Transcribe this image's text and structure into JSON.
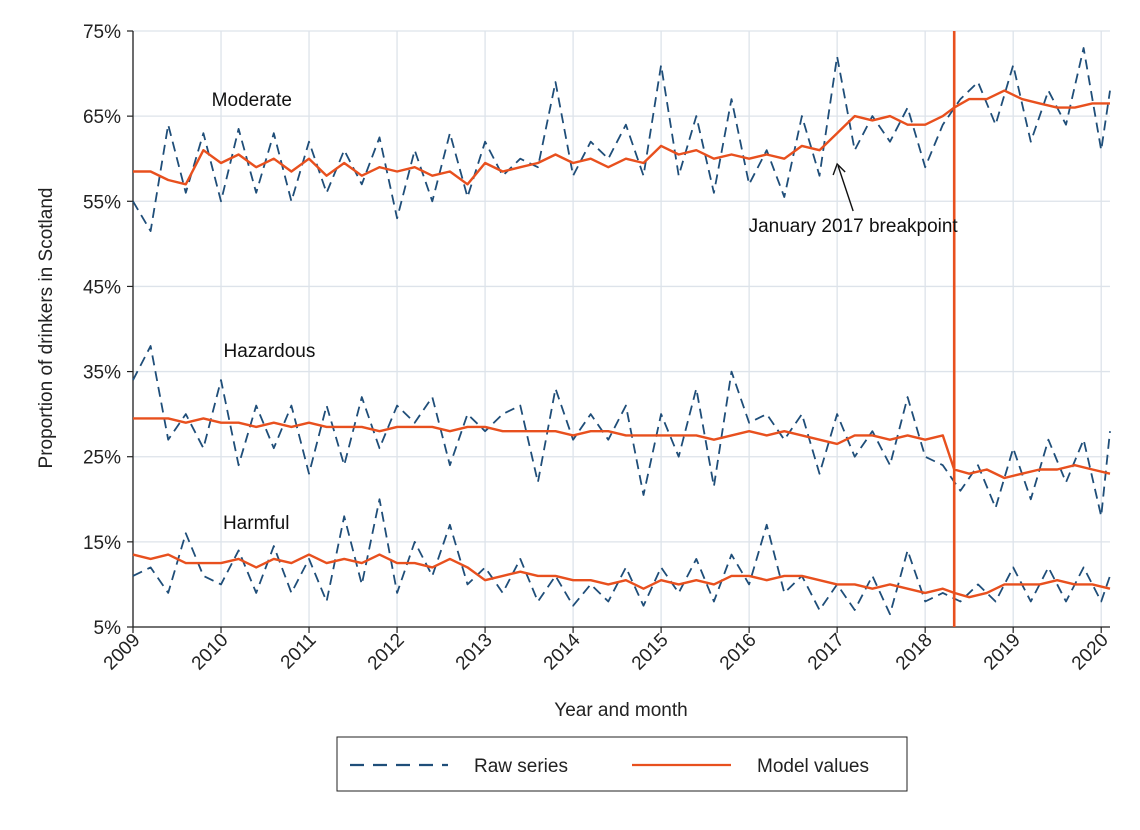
{
  "chart_data": {
    "type": "line",
    "title": "",
    "xlabel": "Year and month",
    "ylabel": "Proportion of drinkers in Scotland",
    "xlim": [
      2009,
      2020.1
    ],
    "ylim": [
      5,
      75
    ],
    "yticks": [
      5,
      15,
      25,
      35,
      45,
      55,
      65,
      75
    ],
    "ytick_labels": [
      "5%",
      "15%",
      "25%",
      "35%",
      "45%",
      "55%",
      "65%",
      "75%"
    ],
    "xticks": [
      2009,
      2010,
      2011,
      2012,
      2013,
      2014,
      2015,
      2016,
      2017,
      2018,
      2019,
      2020
    ],
    "xtick_labels": [
      "2009",
      "2010",
      "2011",
      "2012",
      "2013",
      "2014",
      "2015",
      "2016",
      "2017",
      "2018",
      "2019",
      "2020"
    ],
    "grid": true,
    "breakpoint_line": {
      "x": 2018.33,
      "color": "#e8501e"
    },
    "annotation": {
      "text": "January 2017 breakpoint",
      "x": 2017.0,
      "y": 59.5
    },
    "group_labels": [
      {
        "text": "Moderate",
        "x": 2010.35,
        "y": 66.2
      },
      {
        "text": "Hazardous",
        "x": 2010.55,
        "y": 36.7
      },
      {
        "text": "Harmful",
        "x": 2010.4,
        "y": 16.5
      }
    ],
    "legend": {
      "position": "bottom",
      "entries": [
        {
          "label": "Raw series",
          "style": "dashed",
          "color": "#1f4e79"
        },
        {
          "label": "Model values",
          "style": "solid",
          "color": "#e8501e"
        }
      ]
    },
    "series": [
      {
        "name": "Moderate raw",
        "style": "dashed",
        "color": "#1f4e79",
        "x": [
          2009.0,
          2009.2,
          2009.4,
          2009.6,
          2009.8,
          2010.0,
          2010.2,
          2010.4,
          2010.6,
          2010.8,
          2011.0,
          2011.2,
          2011.4,
          2011.6,
          2011.8,
          2012.0,
          2012.2,
          2012.4,
          2012.6,
          2012.8,
          2013.0,
          2013.2,
          2013.4,
          2013.6,
          2013.8,
          2014.0,
          2014.2,
          2014.4,
          2014.6,
          2014.8,
          2015.0,
          2015.2,
          2015.4,
          2015.6,
          2015.8,
          2016.0,
          2016.2,
          2016.4,
          2016.6,
          2016.8,
          2017.0,
          2017.2,
          2017.4,
          2017.6,
          2017.8,
          2018.0,
          2018.2,
          2018.4,
          2018.6,
          2018.8,
          2019.0,
          2019.2,
          2019.4,
          2019.6,
          2019.8,
          2020.0,
          2020.1
        ],
        "values": [
          55,
          51.5,
          64,
          56,
          63,
          55,
          63.5,
          56,
          63,
          55,
          62,
          56,
          61,
          57,
          62.5,
          53,
          61,
          55,
          63,
          55.5,
          62,
          58,
          60,
          59,
          69,
          58,
          62,
          60,
          64,
          58,
          71,
          58,
          65,
          56,
          67,
          57,
          61,
          55.5,
          65,
          58,
          72,
          61,
          65,
          62,
          66,
          59,
          64,
          67,
          69,
          64,
          71,
          62,
          68,
          64,
          73,
          61,
          68
        ]
      },
      {
        "name": "Moderate model",
        "style": "solid",
        "color": "#e8501e",
        "x": [
          2009.0,
          2009.2,
          2009.4,
          2009.6,
          2009.8,
          2010.0,
          2010.2,
          2010.4,
          2010.6,
          2010.8,
          2011.0,
          2011.2,
          2011.4,
          2011.6,
          2011.8,
          2012.0,
          2012.2,
          2012.4,
          2012.6,
          2012.8,
          2013.0,
          2013.2,
          2013.4,
          2013.6,
          2013.8,
          2014.0,
          2014.2,
          2014.4,
          2014.6,
          2014.8,
          2015.0,
          2015.2,
          2015.4,
          2015.6,
          2015.8,
          2016.0,
          2016.2,
          2016.4,
          2016.6,
          2016.8,
          2017.0,
          2017.2,
          2017.4,
          2017.6,
          2017.8,
          2018.0,
          2018.2,
          2018.33,
          2018.5,
          2018.7,
          2018.9,
          2019.1,
          2019.3,
          2019.5,
          2019.7,
          2019.9,
          2020.1
        ],
        "values": [
          58.5,
          58.5,
          57.5,
          57,
          61,
          59.5,
          60.5,
          59,
          60,
          58.5,
          60,
          58,
          59.5,
          58,
          59,
          58.5,
          59,
          58,
          58.5,
          57,
          59.5,
          58.5,
          59,
          59.5,
          60.5,
          59.5,
          60,
          59,
          60,
          59.5,
          61.5,
          60.5,
          61,
          60,
          60.5,
          60,
          60.5,
          60,
          61.5,
          61,
          63,
          65,
          64.5,
          65,
          64,
          64,
          65,
          66,
          67,
          67,
          68,
          67,
          66.5,
          66,
          66,
          66.5,
          66.5
        ]
      },
      {
        "name": "Hazardous raw",
        "style": "dashed",
        "color": "#1f4e79",
        "x": [
          2009.0,
          2009.2,
          2009.4,
          2009.6,
          2009.8,
          2010.0,
          2010.2,
          2010.4,
          2010.6,
          2010.8,
          2011.0,
          2011.2,
          2011.4,
          2011.6,
          2011.8,
          2012.0,
          2012.2,
          2012.4,
          2012.6,
          2012.8,
          2013.0,
          2013.2,
          2013.4,
          2013.6,
          2013.8,
          2014.0,
          2014.2,
          2014.4,
          2014.6,
          2014.8,
          2015.0,
          2015.2,
          2015.4,
          2015.6,
          2015.8,
          2016.0,
          2016.2,
          2016.4,
          2016.6,
          2016.8,
          2017.0,
          2017.2,
          2017.4,
          2017.6,
          2017.8,
          2018.0,
          2018.2,
          2018.4,
          2018.6,
          2018.8,
          2019.0,
          2019.2,
          2019.4,
          2019.6,
          2019.8,
          2020.0,
          2020.1
        ],
        "values": [
          34,
          38,
          27,
          30,
          26,
          34,
          24,
          31,
          26,
          31,
          23,
          31,
          24,
          32,
          26,
          31,
          29,
          32,
          24,
          30,
          28,
          30,
          31,
          22,
          33,
          27,
          30,
          27,
          31,
          20.5,
          30,
          25,
          33,
          21.5,
          35,
          29,
          30,
          27,
          30,
          23,
          30,
          25,
          28,
          24,
          32,
          25,
          24,
          21,
          24,
          19,
          26,
          20,
          27,
          22,
          27,
          18,
          28
        ]
      },
      {
        "name": "Hazardous model",
        "style": "solid",
        "color": "#e8501e",
        "x": [
          2009.0,
          2009.2,
          2009.4,
          2009.6,
          2009.8,
          2010.0,
          2010.2,
          2010.4,
          2010.6,
          2010.8,
          2011.0,
          2011.2,
          2011.4,
          2011.6,
          2011.8,
          2012.0,
          2012.2,
          2012.4,
          2012.6,
          2012.8,
          2013.0,
          2013.2,
          2013.4,
          2013.6,
          2013.8,
          2014.0,
          2014.2,
          2014.4,
          2014.6,
          2014.8,
          2015.0,
          2015.2,
          2015.4,
          2015.6,
          2015.8,
          2016.0,
          2016.2,
          2016.4,
          2016.6,
          2016.8,
          2017.0,
          2017.2,
          2017.4,
          2017.6,
          2017.8,
          2018.0,
          2018.2,
          2018.33,
          2018.5,
          2018.7,
          2018.9,
          2019.1,
          2019.3,
          2019.5,
          2019.7,
          2019.9,
          2020.1
        ],
        "values": [
          29.5,
          29.5,
          29.5,
          29,
          29.5,
          29,
          29,
          28.5,
          29,
          28.5,
          29,
          28.5,
          28.5,
          28.5,
          28,
          28.5,
          28.5,
          28.5,
          28,
          28.5,
          28.5,
          28,
          28,
          28,
          28,
          27.5,
          28,
          28,
          27.5,
          27.5,
          27.5,
          27.5,
          27.5,
          27,
          27.5,
          28,
          27.5,
          28,
          27.5,
          27,
          26.5,
          27.5,
          27.5,
          27,
          27.5,
          27,
          27.5,
          23.5,
          23,
          23.5,
          22.5,
          23,
          23.5,
          23.5,
          24,
          23.5,
          23
        ]
      },
      {
        "name": "Harmful raw",
        "style": "dashed",
        "color": "#1f4e79",
        "x": [
          2009.0,
          2009.2,
          2009.4,
          2009.6,
          2009.8,
          2010.0,
          2010.2,
          2010.4,
          2010.6,
          2010.8,
          2011.0,
          2011.2,
          2011.4,
          2011.6,
          2011.8,
          2012.0,
          2012.2,
          2012.4,
          2012.6,
          2012.8,
          2013.0,
          2013.2,
          2013.4,
          2013.6,
          2013.8,
          2014.0,
          2014.2,
          2014.4,
          2014.6,
          2014.8,
          2015.0,
          2015.2,
          2015.4,
          2015.6,
          2015.8,
          2016.0,
          2016.2,
          2016.4,
          2016.6,
          2016.8,
          2017.0,
          2017.2,
          2017.4,
          2017.6,
          2017.8,
          2018.0,
          2018.2,
          2018.4,
          2018.6,
          2018.8,
          2019.0,
          2019.2,
          2019.4,
          2019.6,
          2019.8,
          2020.0,
          2020.1
        ],
        "values": [
          11,
          12,
          9,
          16,
          11,
          10,
          14,
          9,
          14.5,
          9,
          13,
          8,
          18,
          10,
          20,
          9,
          15,
          11,
          17,
          10,
          12,
          9,
          13,
          8,
          11,
          7.5,
          10,
          8,
          12,
          7.5,
          12,
          9,
          13,
          8,
          13.5,
          10,
          17,
          9,
          11,
          7,
          10,
          7,
          11,
          6.5,
          14,
          8,
          9,
          8,
          10,
          8,
          12,
          8,
          12,
          8,
          12,
          8,
          11
        ]
      },
      {
        "name": "Harmful model",
        "style": "solid",
        "color": "#e8501e",
        "x": [
          2009.0,
          2009.2,
          2009.4,
          2009.6,
          2009.8,
          2010.0,
          2010.2,
          2010.4,
          2010.6,
          2010.8,
          2011.0,
          2011.2,
          2011.4,
          2011.6,
          2011.8,
          2012.0,
          2012.2,
          2012.4,
          2012.6,
          2012.8,
          2013.0,
          2013.2,
          2013.4,
          2013.6,
          2013.8,
          2014.0,
          2014.2,
          2014.4,
          2014.6,
          2014.8,
          2015.0,
          2015.2,
          2015.4,
          2015.6,
          2015.8,
          2016.0,
          2016.2,
          2016.4,
          2016.6,
          2016.8,
          2017.0,
          2017.2,
          2017.4,
          2017.6,
          2017.8,
          2018.0,
          2018.2,
          2018.33,
          2018.5,
          2018.7,
          2018.9,
          2019.1,
          2019.3,
          2019.5,
          2019.7,
          2019.9,
          2020.1
        ],
        "values": [
          13.5,
          13,
          13.5,
          12.5,
          12.5,
          12.5,
          13,
          12,
          13,
          12.5,
          13.5,
          12.5,
          13,
          12.5,
          13.5,
          12.5,
          12.5,
          12,
          13,
          12,
          10.5,
          11,
          11.5,
          11,
          11,
          10.5,
          10.5,
          10,
          10.5,
          9.5,
          10.5,
          10,
          10.5,
          10,
          11,
          11,
          10.5,
          11,
          11,
          10.5,
          10,
          10,
          9.5,
          10,
          9.5,
          9,
          9.5,
          9,
          8.5,
          9,
          10,
          10,
          10,
          10.5,
          10,
          10,
          9.5
        ]
      }
    ]
  }
}
